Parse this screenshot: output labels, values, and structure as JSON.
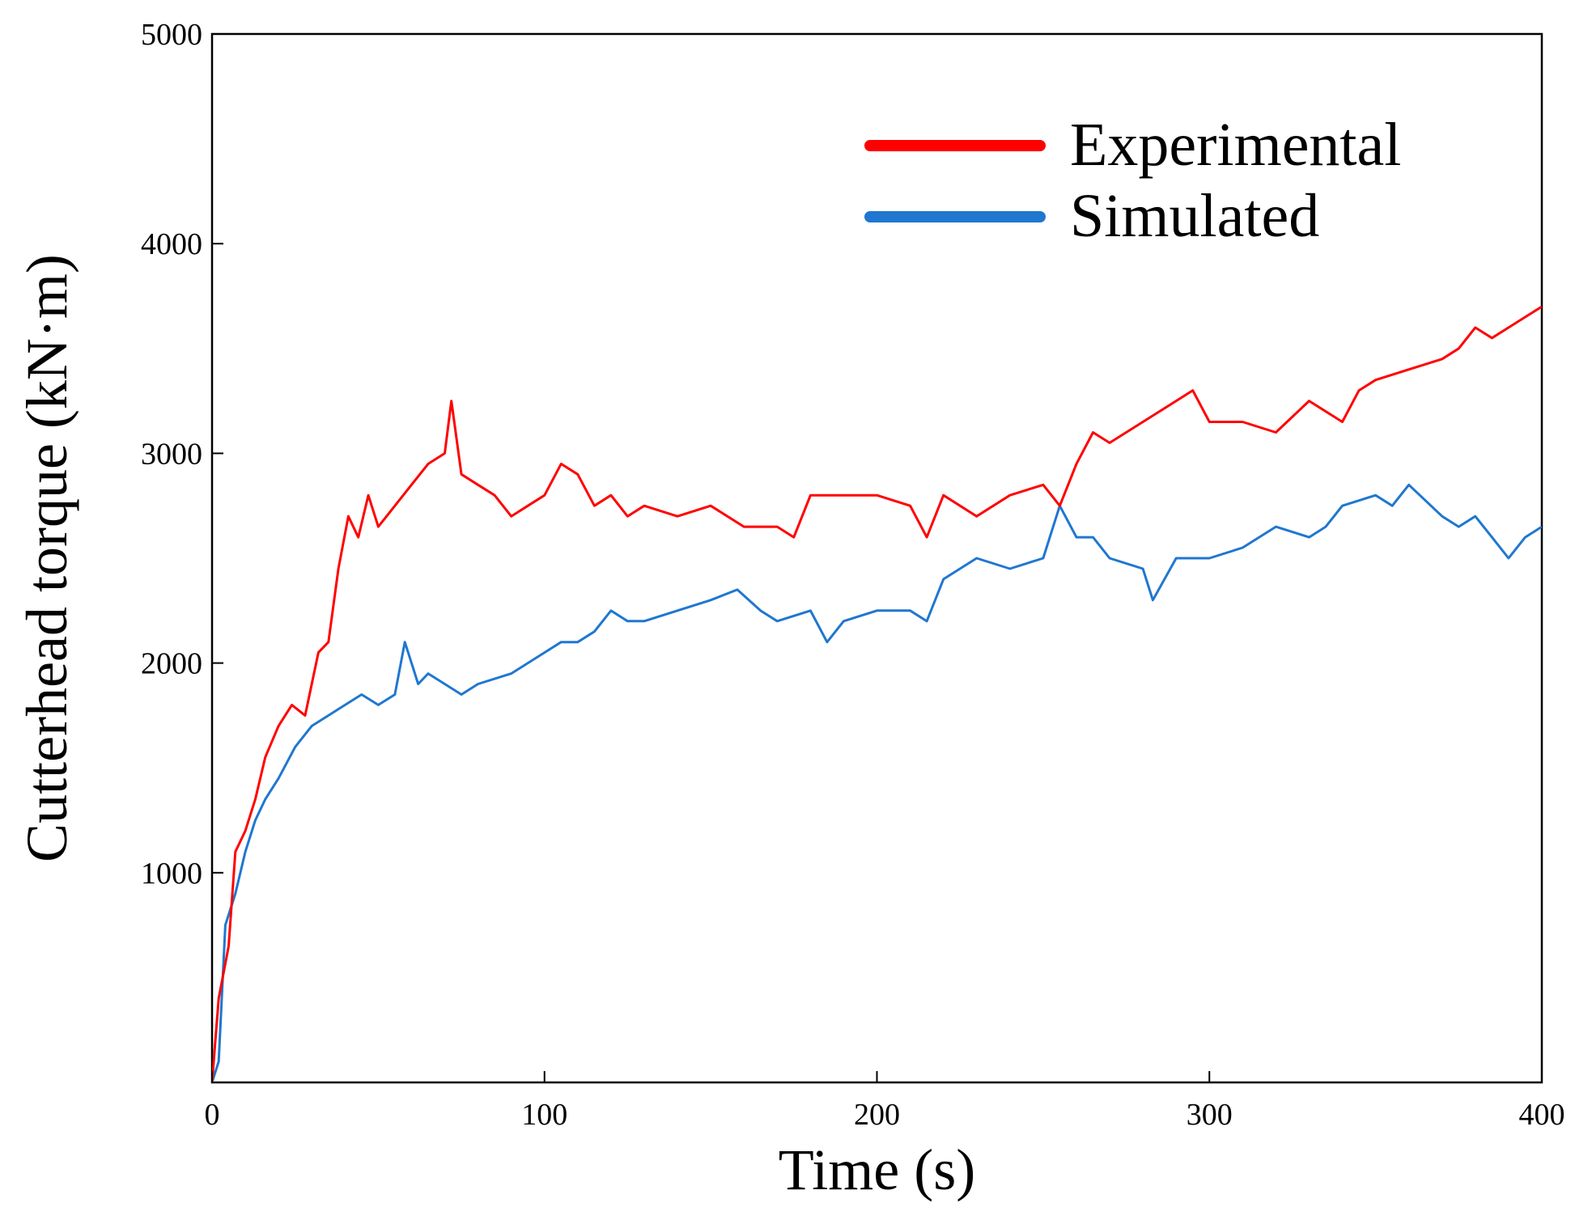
{
  "chart_data": {
    "type": "line",
    "title": "",
    "xlabel": "Time (s)",
    "ylabel": "Cutterhead torque (kN·m)",
    "xlim": [
      0,
      400
    ],
    "ylim": [
      0,
      5000
    ],
    "x_ticks": [
      0,
      100,
      200,
      300,
      400
    ],
    "x_tick_labels": [
      "0",
      "100",
      "200",
      "300",
      "400"
    ],
    "y_ticks": [
      1000,
      2000,
      3000,
      4000,
      5000
    ],
    "y_tick_labels": [
      "1000",
      "2000",
      "3000",
      "4000",
      "5000"
    ],
    "grid": false,
    "legend": {
      "position": "top-right",
      "entries": [
        "Experimental",
        "Simulated"
      ]
    },
    "series": [
      {
        "name": "Experimental",
        "color": "#ff0000",
        "x": [
          0,
          2,
          5,
          7,
          10,
          13,
          16,
          20,
          24,
          28,
          32,
          35,
          38,
          41,
          44,
          47,
          50,
          55,
          60,
          65,
          70,
          72,
          75,
          80,
          85,
          90,
          95,
          100,
          105,
          110,
          115,
          120,
          125,
          130,
          140,
          150,
          160,
          170,
          175,
          180,
          190,
          200,
          210,
          215,
          220,
          230,
          240,
          250,
          255,
          260,
          265,
          270,
          280,
          290,
          295,
          300,
          310,
          320,
          330,
          340,
          345,
          350,
          360,
          370,
          375,
          380,
          385,
          390,
          395,
          400
        ],
        "y": [
          0,
          400,
          650,
          1100,
          1200,
          1350,
          1550,
          1700,
          1800,
          1750,
          2050,
          2100,
          2450,
          2700,
          2600,
          2800,
          2650,
          2750,
          2850,
          2950,
          3000,
          3250,
          2900,
          2850,
          2800,
          2700,
          2750,
          2800,
          2950,
          2900,
          2750,
          2800,
          2700,
          2750,
          2700,
          2750,
          2650,
          2650,
          2600,
          2800,
          2800,
          2800,
          2750,
          2600,
          2800,
          2700,
          2800,
          2850,
          2750,
          2950,
          3100,
          3050,
          3150,
          3250,
          3300,
          3150,
          3150,
          3100,
          3250,
          3150,
          3300,
          3350,
          3400,
          3450,
          3500,
          3600,
          3550,
          3600,
          3650,
          3700
        ]
      },
      {
        "name": "Simulated",
        "color": "#1f77d0",
        "x": [
          0,
          2,
          4,
          7,
          10,
          13,
          16,
          20,
          25,
          30,
          35,
          40,
          45,
          50,
          55,
          58,
          62,
          65,
          70,
          75,
          80,
          90,
          100,
          105,
          110,
          115,
          120,
          125,
          130,
          140,
          150,
          158,
          165,
          170,
          180,
          185,
          190,
          200,
          210,
          215,
          220,
          230,
          240,
          250,
          255,
          260,
          265,
          270,
          280,
          283,
          290,
          300,
          310,
          320,
          330,
          335,
          340,
          350,
          355,
          360,
          370,
          375,
          380,
          385,
          390,
          395,
          400
        ],
        "y": [
          0,
          100,
          750,
          900,
          1100,
          1250,
          1350,
          1450,
          1600,
          1700,
          1750,
          1800,
          1850,
          1800,
          1850,
          2100,
          1900,
          1950,
          1900,
          1850,
          1900,
          1950,
          2050,
          2100,
          2100,
          2150,
          2250,
          2200,
          2200,
          2250,
          2300,
          2350,
          2250,
          2200,
          2250,
          2100,
          2200,
          2250,
          2250,
          2200,
          2400,
          2500,
          2450,
          2500,
          2750,
          2600,
          2600,
          2500,
          2450,
          2300,
          2500,
          2500,
          2550,
          2650,
          2600,
          2650,
          2750,
          2800,
          2750,
          2850,
          2700,
          2650,
          2700,
          2600,
          2500,
          2600,
          2650
        ]
      }
    ]
  }
}
